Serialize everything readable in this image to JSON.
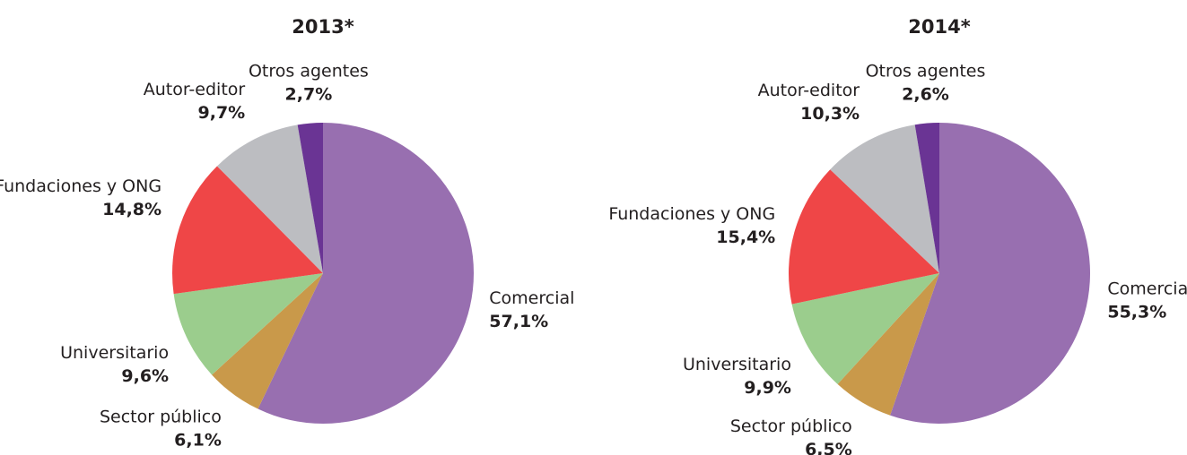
{
  "chart_data": [
    {
      "type": "pie",
      "title": "2013*",
      "categories": [
        "Comercial",
        "Sector público",
        "Universitario",
        "Fundaciones y ONG",
        "Autor-editor",
        "Otros agentes"
      ],
      "values": [
        57.1,
        6.1,
        9.6,
        14.8,
        9.7,
        2.7
      ],
      "value_labels": [
        "57,1%",
        "6,1%",
        "9,6%",
        "14,8%",
        "9,7%",
        "2,7%"
      ],
      "colors": [
        "#986fb0",
        "#c9994a",
        "#9bcd8d",
        "#ef4647",
        "#bcbdc1",
        "#6a3494"
      ]
    },
    {
      "type": "pie",
      "title": "2014*",
      "categories": [
        "Comercial",
        "Sector público",
        "Universitario",
        "Fundaciones y ONG",
        "Autor-editor",
        "Otros agentes"
      ],
      "values": [
        55.3,
        6.5,
        9.9,
        15.4,
        10.3,
        2.6
      ],
      "value_labels": [
        "55,3%",
        "6,5%",
        "9,9%",
        "15,4%",
        "10,3%",
        "2,6%"
      ],
      "colors": [
        "#986fb0",
        "#c9994a",
        "#9bcd8d",
        "#ef4647",
        "#bcbdc1",
        "#6a3494"
      ]
    }
  ]
}
